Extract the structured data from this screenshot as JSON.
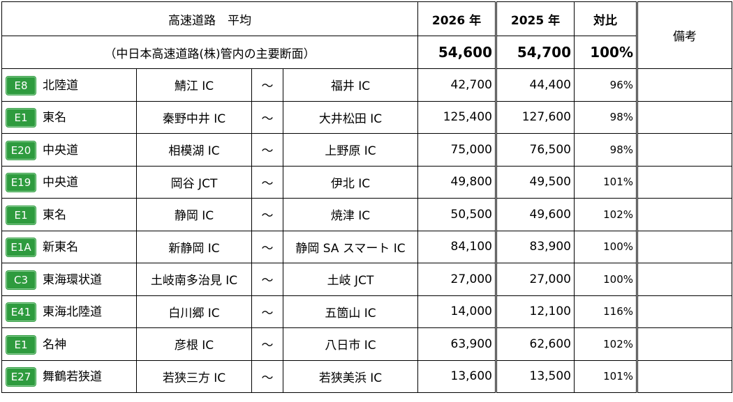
{
  "header": {
    "title": "高速道路　平均",
    "subtitle": "（中日本高速道路(株)管内の主要断面）",
    "col_2026": "2026 年",
    "col_2025": "2025 年",
    "col_ratio": "対比",
    "col_remarks": "備考",
    "avg_2026": "54,600",
    "avg_2025": "54,700",
    "avg_ratio": "100%"
  },
  "rows": [
    {
      "badge": "E8",
      "road": "北陸道",
      "from": "鯖江 IC",
      "sep": "～",
      "to": "福井 IC",
      "v2026": "42,700",
      "v2025": "44,400",
      "ratio": "96%"
    },
    {
      "badge": "E1",
      "road": "東名",
      "from": "秦野中井 IC",
      "sep": "～",
      "to": "大井松田 IC",
      "v2026": "125,400",
      "v2025": "127,600",
      "ratio": "98%"
    },
    {
      "badge": "E20",
      "road": "中央道",
      "from": "相模湖 IC",
      "sep": "～",
      "to": "上野原 IC",
      "v2026": "75,000",
      "v2025": "76,500",
      "ratio": "98%"
    },
    {
      "badge": "E19",
      "road": "中央道",
      "from": "岡谷 JCT",
      "sep": "～",
      "to": "伊北 IC",
      "v2026": "49,800",
      "v2025": "49,500",
      "ratio": "101%"
    },
    {
      "badge": "E1",
      "road": "東名",
      "from": "静岡 IC",
      "sep": "～",
      "to": "焼津 IC",
      "v2026": "50,500",
      "v2025": "49,600",
      "ratio": "102%"
    },
    {
      "badge": "E1A",
      "road": "新東名",
      "from": "新静岡 IC",
      "sep": "～",
      "to": "静岡 SA スマート IC",
      "v2026": "84,100",
      "v2025": "83,900",
      "ratio": "100%"
    },
    {
      "badge": "C3",
      "road": "東海環状道",
      "from": "土岐南多治見 IC",
      "sep": "～",
      "to": "土岐 JCT",
      "v2026": "27,000",
      "v2025": "27,000",
      "ratio": "100%"
    },
    {
      "badge": "E41",
      "road": "東海北陸道",
      "from": "白川郷 IC",
      "sep": "～",
      "to": "五箇山 IC",
      "v2026": "14,000",
      "v2025": "12,100",
      "ratio": "116%"
    },
    {
      "badge": "E1",
      "road": "名神",
      "from": "彦根 IC",
      "sep": "～",
      "to": "八日市 IC",
      "v2026": "63,900",
      "v2025": "62,600",
      "ratio": "102%"
    },
    {
      "badge": "E27",
      "road": "舞鶴若狭道",
      "from": "若狭三方 IC",
      "sep": "～",
      "to": "若狭美浜 IC",
      "v2026": "13,600",
      "v2025": "13,500",
      "ratio": "101%"
    }
  ]
}
